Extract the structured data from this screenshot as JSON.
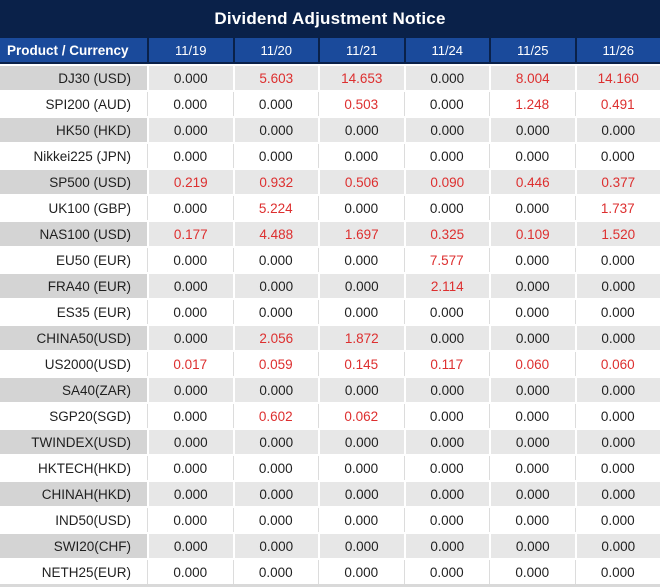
{
  "title": "Dividend Adjustment Notice",
  "colors": {
    "title_bar_navy": "#0A2149",
    "header_blue": "#1A4A9B",
    "stripe_product_gray": "#D4D4D4",
    "stripe_value_gray": "#E7E7E7",
    "value_text": "#1F1F1F",
    "nonzero_red": "#DD2F2F"
  },
  "table": {
    "product_header": "Product / Currency",
    "date_headers": [
      "11/19",
      "11/20",
      "11/21",
      "11/24",
      "11/25",
      "11/26"
    ],
    "rows": [
      {
        "product": "DJ30 (USD)",
        "values": [
          "0.000",
          "5.603",
          "14.653",
          "0.000",
          "8.004",
          "14.160"
        ]
      },
      {
        "product": "SPI200 (AUD)",
        "values": [
          "0.000",
          "0.000",
          "0.503",
          "0.000",
          "1.248",
          "0.491"
        ]
      },
      {
        "product": "HK50 (HKD)",
        "values": [
          "0.000",
          "0.000",
          "0.000",
          "0.000",
          "0.000",
          "0.000"
        ]
      },
      {
        "product": "Nikkei225 (JPN)",
        "values": [
          "0.000",
          "0.000",
          "0.000",
          "0.000",
          "0.000",
          "0.000"
        ]
      },
      {
        "product": "SP500 (USD)",
        "values": [
          "0.219",
          "0.932",
          "0.506",
          "0.090",
          "0.446",
          "0.377"
        ]
      },
      {
        "product": "UK100 (GBP)",
        "values": [
          "0.000",
          "5.224",
          "0.000",
          "0.000",
          "0.000",
          "1.737"
        ]
      },
      {
        "product": "NAS100 (USD)",
        "values": [
          "0.177",
          "4.488",
          "1.697",
          "0.325",
          "0.109",
          "1.520"
        ]
      },
      {
        "product": "EU50 (EUR)",
        "values": [
          "0.000",
          "0.000",
          "0.000",
          "7.577",
          "0.000",
          "0.000"
        ]
      },
      {
        "product": "FRA40 (EUR)",
        "values": [
          "0.000",
          "0.000",
          "0.000",
          "2.114",
          "0.000",
          "0.000"
        ]
      },
      {
        "product": "ES35 (EUR)",
        "values": [
          "0.000",
          "0.000",
          "0.000",
          "0.000",
          "0.000",
          "0.000"
        ]
      },
      {
        "product": "CHINA50(USD)",
        "values": [
          "0.000",
          "2.056",
          "1.872",
          "0.000",
          "0.000",
          "0.000"
        ]
      },
      {
        "product": "US2000(USD)",
        "values": [
          "0.017",
          "0.059",
          "0.145",
          "0.117",
          "0.060",
          "0.060"
        ]
      },
      {
        "product": "SA40(ZAR)",
        "values": [
          "0.000",
          "0.000",
          "0.000",
          "0.000",
          "0.000",
          "0.000"
        ]
      },
      {
        "product": "SGP20(SGD)",
        "values": [
          "0.000",
          "0.602",
          "0.062",
          "0.000",
          "0.000",
          "0.000"
        ]
      },
      {
        "product": "TWINDEX(USD)",
        "values": [
          "0.000",
          "0.000",
          "0.000",
          "0.000",
          "0.000",
          "0.000"
        ]
      },
      {
        "product": "HKTECH(HKD)",
        "values": [
          "0.000",
          "0.000",
          "0.000",
          "0.000",
          "0.000",
          "0.000"
        ]
      },
      {
        "product": "CHINAH(HKD)",
        "values": [
          "0.000",
          "0.000",
          "0.000",
          "0.000",
          "0.000",
          "0.000"
        ]
      },
      {
        "product": "IND50(USD)",
        "values": [
          "0.000",
          "0.000",
          "0.000",
          "0.000",
          "0.000",
          "0.000"
        ]
      },
      {
        "product": "SWI20(CHF)",
        "values": [
          "0.000",
          "0.000",
          "0.000",
          "0.000",
          "0.000",
          "0.000"
        ]
      },
      {
        "product": "NETH25(EUR)",
        "values": [
          "0.000",
          "0.000",
          "0.000",
          "0.000",
          "0.000",
          "0.000"
        ]
      }
    ]
  }
}
